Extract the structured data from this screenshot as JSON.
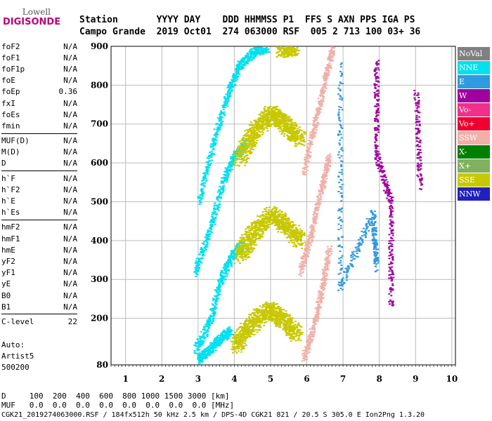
{
  "logo": {
    "line1": "Lowell",
    "line2": "DIGISONDE"
  },
  "header": {
    "labels": "Station       YYYY DAY    DDD HHMMSS P1  FFS S AXN PPS IGA PS",
    "values": "Campo Grande  2019 Oct01  274 063000 RSF  005 2 713 100 03+ 36"
  },
  "params_groups": [
    [
      {
        "name": "foF2",
        "value": "N/A"
      },
      {
        "name": "foF1",
        "value": "N/A"
      },
      {
        "name": "foF1p",
        "value": "N/A"
      },
      {
        "name": "foE",
        "value": "N/A"
      },
      {
        "name": "foEp",
        "value": "0.36"
      },
      {
        "name": "fxI",
        "value": "N/A"
      },
      {
        "name": "foEs",
        "value": "N/A"
      },
      {
        "name": "fmin",
        "value": "N/A"
      }
    ],
    [
      {
        "name": "MUF(D)",
        "value": "N/A"
      },
      {
        "name": "M(D)",
        "value": "N/A"
      },
      {
        "name": "D",
        "value": "N/A"
      }
    ],
    [
      {
        "name": "h`F",
        "value": "N/A"
      },
      {
        "name": "h`F2",
        "value": "N/A"
      },
      {
        "name": "h`E",
        "value": "N/A"
      },
      {
        "name": "h`Es",
        "value": "N/A"
      }
    ],
    [
      {
        "name": "hmF2",
        "value": "N/A"
      },
      {
        "name": "hmF1",
        "value": "N/A"
      },
      {
        "name": "hmE",
        "value": "N/A"
      },
      {
        "name": "yF2",
        "value": "N/A"
      },
      {
        "name": "yF1",
        "value": "N/A"
      },
      {
        "name": "yE",
        "value": "N/A"
      },
      {
        "name": "B0",
        "value": "N/A"
      },
      {
        "name": "B1",
        "value": "N/A"
      }
    ],
    [
      {
        "name": "C-level",
        "value": "22"
      }
    ]
  ],
  "auto": {
    "line1": "Auto:",
    "line2": "Artist5",
    "line3": "500200"
  },
  "legend": [
    {
      "label": "NoVal",
      "color": "#808080"
    },
    {
      "label": "NNE",
      "color": "#00e0f0"
    },
    {
      "label": "E",
      "color": "#2f9ae0"
    },
    {
      "label": "W",
      "color": "#a000a0"
    },
    {
      "label": "Vo-",
      "color": "#f0308a"
    },
    {
      "label": "Vo+",
      "color": "#f00030"
    },
    {
      "label": "SSW",
      "color": "#f0b0a8"
    },
    {
      "label": "X-",
      "color": "#008000"
    },
    {
      "label": "X+",
      "color": "#80b060"
    },
    {
      "label": "SSE",
      "color": "#c8c800"
    },
    {
      "label": "NNW",
      "color": "#2020c0"
    }
  ],
  "bottom": {
    "d_line": "D     100  200  400  600  800 1000 1500 3000 [km]",
    "muf_line": "MUF   0.0  0.0  0.0  0.0  0.0  0.0  0.0  0.0 [MHz]"
  },
  "footer": "CGK21_2019274063000.RSF / 184fx512h 50 kHz 2.5 km / DPS-4D CGK21 821 / 20.5 S 305.0 E Ion2Png 1.3.20",
  "chart_data": {
    "type": "scatter",
    "title": "",
    "xlabel": "",
    "ylabel": "",
    "xlim": [
      0.6,
      10.1
    ],
    "ylim": [
      80,
      900
    ],
    "x_ticks": [
      1,
      2,
      3,
      4,
      5,
      6,
      7,
      8,
      9,
      10
    ],
    "y_ticks": [
      80,
      200,
      300,
      400,
      500,
      600,
      700,
      800,
      900
    ],
    "grid": true,
    "legend_position": "right",
    "series": [
      {
        "name": "NNE",
        "traces": [
          {
            "x": [
              3.0,
              3.4,
              3.8,
              4.1,
              4.5,
              4.9
            ],
            "y": [
              500,
              650,
              780,
              850,
              885,
              900
            ]
          },
          {
            "x": [
              2.9,
              3.3,
              3.7,
              4.0,
              4.3
            ],
            "y": [
              320,
              430,
              560,
              620,
              650
            ]
          },
          {
            "x": [
              2.9,
              3.3,
              3.6,
              3.9,
              4.2
            ],
            "y": [
              120,
              190,
              300,
              360,
              390
            ]
          },
          {
            "x": [
              3.0,
              3.3,
              3.6,
              3.9
            ],
            "y": [
              95,
              120,
              150,
              170
            ]
          }
        ]
      },
      {
        "name": "SSE",
        "traces": [
          {
            "x": [
              4.1,
              4.5,
              5.0,
              5.4,
              5.8
            ],
            "y": [
              610,
              680,
              730,
              700,
              660
            ]
          },
          {
            "x": [
              4.1,
              4.5,
              5.0,
              5.4,
              5.8
            ],
            "y": [
              360,
              420,
              470,
              440,
              400
            ]
          },
          {
            "x": [
              4.0,
              4.4,
              4.9,
              5.3,
              5.7
            ],
            "y": [
              130,
              180,
              225,
              200,
              160
            ]
          },
          {
            "x": [
              5.3,
              5.6
            ],
            "y": [
              890,
              900
            ]
          }
        ]
      },
      {
        "name": "SSW",
        "traces": [
          {
            "x": [
              5.9,
              6.2,
              6.5,
              6.7
            ],
            "y": [
              580,
              700,
              820,
              900
            ]
          },
          {
            "x": [
              5.8,
              6.1,
              6.4,
              6.6
            ],
            "y": [
              320,
              420,
              540,
              620
            ]
          },
          {
            "x": [
              5.9,
              6.2,
              6.4,
              6.6
            ],
            "y": [
              100,
              190,
              280,
              380
            ]
          }
        ]
      },
      {
        "name": "W",
        "traces": [
          {
            "x": [
              7.9,
              7.9,
              8.3,
              8.3
            ],
            "y": [
              860,
              620,
              500,
              230
            ]
          },
          {
            "x": [
              9.0,
              9.1
            ],
            "y": [
              780,
              540
            ]
          }
        ]
      },
      {
        "name": "E",
        "traces": [
          {
            "x": [
              6.9,
              6.9,
              7.8,
              7.9
            ],
            "y": [
              850,
              280,
              470,
              330
            ]
          }
        ]
      }
    ]
  }
}
